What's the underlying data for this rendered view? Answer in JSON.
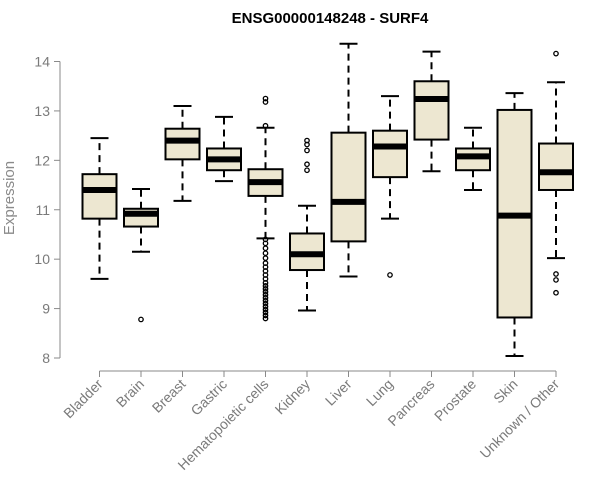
{
  "chart_data": {
    "type": "boxplot",
    "title": "ENSG00000148248 - SURF4",
    "xlabel": "",
    "ylabel": "Expression",
    "ylim": [
      8,
      14
    ],
    "yticks": [
      8,
      9,
      10,
      11,
      12,
      13,
      14
    ],
    "grid": false,
    "colors": {
      "box_fill": "#ede7d1",
      "box_stroke": "#000000",
      "axis": "#8a8a8a",
      "tick_text": "#7a7a7a"
    },
    "categories": [
      "Bladder",
      "Brain",
      "Breast",
      "Gastric",
      "Hematopoietic cells",
      "Kidney",
      "Liver",
      "Lung",
      "Pancreas",
      "Prostate",
      "Skin",
      "Unknown / Other"
    ],
    "boxes": [
      {
        "category": "Bladder",
        "whisker_low": 9.6,
        "q1": 10.82,
        "median": 11.4,
        "q3": 11.72,
        "whisker_high": 12.45,
        "outliers": []
      },
      {
        "category": "Brain",
        "whisker_low": 10.15,
        "q1": 10.66,
        "median": 10.92,
        "q3": 11.02,
        "whisker_high": 11.42,
        "outliers": [
          8.78
        ]
      },
      {
        "category": "Breast",
        "whisker_low": 11.18,
        "q1": 12.02,
        "median": 12.4,
        "q3": 12.64,
        "whisker_high": 13.1,
        "outliers": []
      },
      {
        "category": "Gastric",
        "whisker_low": 11.58,
        "q1": 11.8,
        "median": 12.02,
        "q3": 12.24,
        "whisker_high": 12.88,
        "outliers": []
      },
      {
        "category": "Hematopoietic cells",
        "whisker_low": 10.42,
        "q1": 11.28,
        "median": 11.56,
        "q3": 11.82,
        "whisker_high": 12.66,
        "outliers": [
          13.25,
          13.18,
          12.7,
          10.4,
          10.32,
          10.22,
          10.12,
          10.02,
          9.92,
          9.84,
          9.76,
          9.68,
          9.6,
          9.52,
          9.46,
          9.4,
          9.34,
          9.28,
          9.22,
          9.16,
          9.1,
          9.04,
          8.98,
          8.92,
          8.86,
          8.8
        ]
      },
      {
        "category": "Kidney",
        "whisker_low": 8.96,
        "q1": 9.78,
        "median": 10.1,
        "q3": 10.52,
        "whisker_high": 11.08,
        "outliers": [
          12.4,
          12.32,
          12.2,
          11.92,
          11.8
        ]
      },
      {
        "category": "Liver",
        "whisker_low": 9.65,
        "q1": 10.36,
        "median": 11.16,
        "q3": 12.56,
        "whisker_high": 14.36,
        "outliers": []
      },
      {
        "category": "Lung",
        "whisker_low": 10.82,
        "q1": 11.66,
        "median": 12.28,
        "q3": 12.6,
        "whisker_high": 13.3,
        "outliers": [
          9.68
        ]
      },
      {
        "category": "Pancreas",
        "whisker_low": 11.78,
        "q1": 12.42,
        "median": 13.24,
        "q3": 13.6,
        "whisker_high": 14.2,
        "outliers": []
      },
      {
        "category": "Prostate",
        "whisker_low": 11.4,
        "q1": 11.8,
        "median": 12.08,
        "q3": 12.24,
        "whisker_high": 12.66,
        "outliers": []
      },
      {
        "category": "Skin",
        "whisker_low": 8.04,
        "q1": 8.82,
        "median": 10.88,
        "q3": 13.02,
        "whisker_high": 13.36,
        "outliers": []
      },
      {
        "category": "Unknown / Other",
        "whisker_low": 10.02,
        "q1": 11.4,
        "median": 11.76,
        "q3": 12.34,
        "whisker_high": 13.58,
        "outliers": [
          14.16,
          9.7,
          9.58,
          9.32
        ]
      }
    ]
  }
}
